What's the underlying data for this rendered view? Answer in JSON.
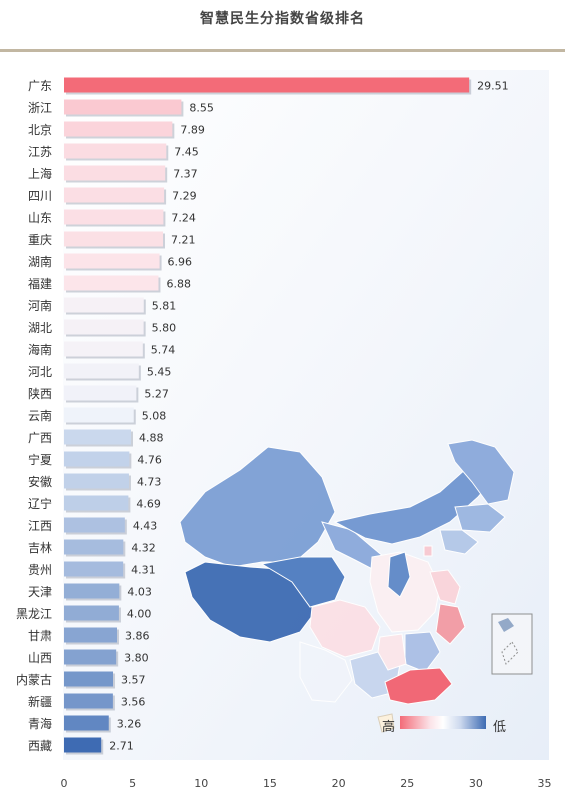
{
  "title": "智慧民生分指数省级排名",
  "legend": {
    "high": "高",
    "low": "低"
  },
  "colors": {
    "high": "#f36b78",
    "mid": "#ffffff",
    "low": "#3d6bb3",
    "rule": "#c2b7a2",
    "panel": "#eef3fa"
  },
  "chart_data": {
    "type": "bar",
    "orientation": "horizontal",
    "title": "智慧民生分指数省级排名",
    "xlabel": "",
    "ylabel": "",
    "xlim": [
      0,
      35
    ],
    "xticks": [
      0,
      5,
      10,
      15,
      20,
      25,
      30,
      35
    ],
    "grid": false,
    "categories": [
      "广东",
      "浙江",
      "北京",
      "江苏",
      "上海",
      "四川",
      "山东",
      "重庆",
      "湖南",
      "福建",
      "河南",
      "湖北",
      "海南",
      "河北",
      "陕西",
      "云南",
      "广西",
      "宁夏",
      "安徽",
      "辽宁",
      "江西",
      "吉林",
      "贵州",
      "天津",
      "黑龙江",
      "甘肃",
      "山西",
      "内蒙古",
      "新疆",
      "青海",
      "西藏"
    ],
    "values": [
      29.51,
      8.55,
      7.89,
      7.45,
      7.37,
      7.29,
      7.24,
      7.21,
      6.96,
      6.88,
      5.81,
      5.8,
      5.74,
      5.45,
      5.27,
      5.08,
      4.88,
      4.76,
      4.73,
      4.69,
      4.43,
      4.32,
      4.31,
      4.03,
      4.0,
      3.86,
      3.8,
      3.57,
      3.56,
      3.26,
      2.71
    ],
    "value_labels": [
      "29.51",
      "8.55",
      "7.89",
      "7.45",
      "7.37",
      "7.29",
      "7.24",
      "7.21",
      "6.96",
      "6.88",
      "5.81",
      "5.80",
      "5.74",
      "5.45",
      "5.27",
      "5.08",
      "4.88",
      "4.76",
      "4.73",
      "4.69",
      "4.43",
      "4.32",
      "4.31",
      "4.03",
      "4.00",
      "3.86",
      "3.80",
      "3.57",
      "3.56",
      "3.26",
      "2.71"
    ]
  }
}
